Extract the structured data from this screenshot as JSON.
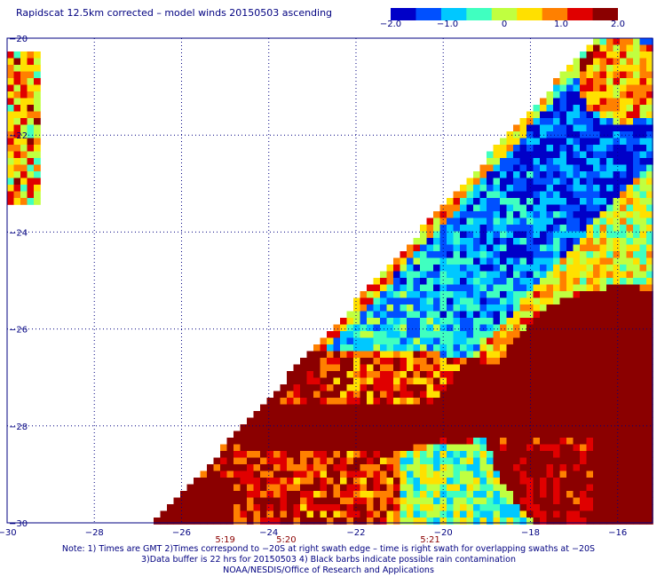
{
  "title": "Rapidscat 12.5km corrected – model winds 20150503 ascending",
  "colorbar": {
    "min": -2.0,
    "max": 2.0,
    "tick_labels": [
      "−2.0",
      "−1.0",
      "0",
      "1.0",
      "2.0"
    ],
    "tick_values": [
      -2.0,
      -1.0,
      0,
      1.0,
      2.0
    ],
    "colors": [
      "#0000c8",
      "#0050ff",
      "#00c8ff",
      "#40ffc0",
      "#c0ff40",
      "#ffe000",
      "#ff8000",
      "#e00000",
      "#8b0000"
    ]
  },
  "map": {
    "lon_range": [
      -30,
      -15.2
    ],
    "lat_range": [
      -30,
      -20
    ],
    "lon_ticks": [
      -30,
      -28,
      -26,
      -24,
      -22,
      -20,
      -18,
      -16
    ],
    "lon_tick_labels": [
      "−30",
      "−28",
      "−26",
      "−24",
      "−22",
      "−20",
      "−18",
      "−16"
    ],
    "lat_ticks": [
      -20,
      -22,
      -24,
      -26,
      -28,
      -30
    ],
    "lat_tick_labels": [
      "−20",
      "−22",
      "−24",
      "−26",
      "−28",
      "−30"
    ],
    "time_labels": [
      {
        "text": "5:19",
        "lon": -25.0
      },
      {
        "text": "5:20",
        "lon": -23.6
      },
      {
        "text": "5:21",
        "lon": -20.3
      }
    ]
  },
  "notes": [
    "Note: 1) Times are GMT 2)Times correspond to −20S at right swath edge – time is right swath for overlapping swaths at −20S",
    "3)Data buffer is 22 hrs for 20150503 4) Black barbs indicate possible rain contamination",
    "NOAA/NESDIS/Office of Research and Applications"
  ]
}
